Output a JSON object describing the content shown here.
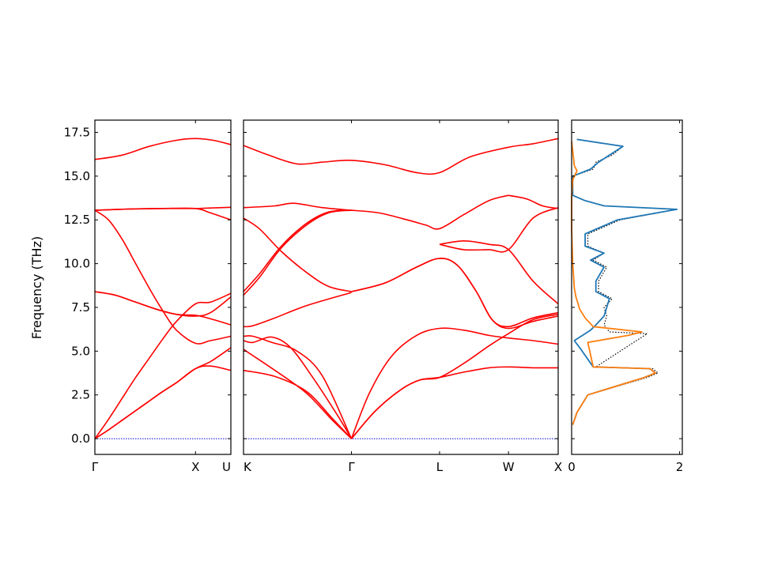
{
  "chart_data": {
    "type": "line",
    "ylabel": "Frequency (THz)",
    "ylim": [
      -0.9,
      18.2
    ],
    "yticks": [
      "0.0",
      "2.5",
      "5.0",
      "7.5",
      "10.0",
      "12.5",
      "15.0",
      "17.5"
    ],
    "ytick_values": [
      0,
      2.5,
      5,
      7.5,
      10,
      12.5,
      15,
      17.5
    ],
    "colors": {
      "bands": "#ff0000",
      "zero_line": "#0000cc",
      "dos_total": "#1f77b4",
      "dos_partial": "#ff7f0e",
      "dos_ref": "#000000"
    },
    "panels": [
      {
        "xticks": [
          "Γ",
          "X",
          "U"
        ],
        "xtick_positions": [
          0,
          0.74,
          1
        ],
        "branches": [
          {
            "x": [
              0,
              0.1,
              0.2,
              0.3,
              0.4,
              0.5,
              0.6,
              0.74,
              0.85,
              1
            ],
            "y": [
              0,
              0.5,
              1.05,
              1.6,
              2.15,
              2.7,
              3.2,
              4.0,
              4.15,
              3.9
            ]
          },
          {
            "x": [
              0,
              0.1,
              0.2,
              0.3,
              0.4,
              0.5,
              0.6,
              0.74,
              0.85,
              1
            ],
            "y": [
              0,
              0.5,
              1.05,
              1.6,
              2.15,
              2.7,
              3.2,
              4.0,
              4.4,
              5.2
            ]
          },
          {
            "x": [
              0,
              0.1,
              0.2,
              0.3,
              0.4,
              0.5,
              0.6,
              0.74,
              0.85,
              1
            ],
            "y": [
              0,
              1.1,
              2.3,
              3.5,
              4.6,
              5.7,
              6.7,
              7.7,
              7.8,
              8.3
            ]
          },
          {
            "x": [
              0,
              0.1,
              0.2,
              0.3,
              0.4,
              0.5,
              0.6,
              0.74,
              0.85,
              1
            ],
            "y": [
              13.05,
              12.5,
              11.4,
              10.0,
              8.6,
              7.3,
              6.2,
              5.45,
              5.6,
              5.85
            ]
          },
          {
            "x": [
              0,
              0.15,
              0.3,
              0.45,
              0.6,
              0.74,
              0.85,
              1
            ],
            "y": [
              8.4,
              8.2,
              7.8,
              7.4,
              7.1,
              7.0,
              7.2,
              8.1
            ]
          },
          {
            "x": [
              0,
              0.15,
              0.3,
              0.45,
              0.6,
              0.74,
              0.85,
              1
            ],
            "y": [
              8.4,
              8.2,
              7.8,
              7.4,
              7.1,
              7.05,
              6.85,
              6.5
            ]
          },
          {
            "x": [
              0,
              0.25,
              0.5,
              0.74,
              0.85,
              1
            ],
            "y": [
              13.05,
              13.12,
              13.15,
              13.15,
              13.18,
              13.22
            ]
          },
          {
            "x": [
              0,
              0.25,
              0.5,
              0.74,
              0.85,
              1
            ],
            "y": [
              13.05,
              13.12,
              13.15,
              13.15,
              12.9,
              12.5
            ]
          },
          {
            "x": [
              0,
              0.2,
              0.4,
              0.6,
              0.74,
              0.87,
              1
            ],
            "y": [
              15.95,
              16.2,
              16.7,
              17.05,
              17.15,
              17.05,
              16.8
            ]
          }
        ]
      },
      {
        "xticks": [
          "K",
          "Γ",
          "L",
          "W",
          "X"
        ],
        "xtick_positions": [
          0,
          0.343,
          0.623,
          0.842,
          1
        ],
        "branches": [
          {
            "x": [
              0,
              0.1,
              0.2,
              0.28,
              0.343
            ],
            "y": [
              3.9,
              3.55,
              2.7,
              1.2,
              0
            ]
          },
          {
            "x": [
              0,
              0.1,
              0.2,
              0.28,
              0.343
            ],
            "y": [
              5.1,
              3.9,
              2.6,
              1.1,
              0
            ]
          },
          {
            "x": [
              0,
              0.03,
              0.09,
              0.15,
              0.22,
              0.3,
              0.343
            ],
            "y": [
              5.6,
              5.5,
              5.8,
              5.2,
              3.5,
              1.3,
              0
            ]
          },
          {
            "x": [
              0,
              0.03,
              0.09,
              0.17,
              0.25,
              0.343
            ],
            "y": [
              5.85,
              5.85,
              5.5,
              5.0,
              3.6,
              0
            ]
          },
          {
            "x": [
              0.343,
              0.42,
              0.5,
              0.56,
              0.623,
              0.7,
              0.78,
              0.842,
              0.92,
              1
            ],
            "y": [
              0,
              1.6,
              2.8,
              3.35,
              3.5,
              3.8,
              4.05,
              4.1,
              4.05,
              4.05
            ]
          },
          {
            "x": [
              0.343,
              0.42,
              0.5,
              0.56,
              0.623,
              0.7,
              0.78,
              0.842,
              0.92,
              1
            ],
            "y": [
              0,
              1.6,
              2.8,
              3.35,
              3.5,
              4.3,
              5.3,
              6.0,
              6.8,
              7.1
            ]
          },
          {
            "x": [
              0.343,
              0.4,
              0.47,
              0.55,
              0.623,
              0.7,
              0.78,
              0.842,
              0.92,
              1
            ],
            "y": [
              0,
              2.6,
              4.7,
              5.9,
              6.3,
              6.2,
              5.9,
              5.75,
              5.6,
              5.4
            ]
          },
          {
            "x": [
              0,
              0.03,
              0.1,
              0.2,
              0.343
            ],
            "y": [
              6.4,
              6.45,
              6.9,
              7.6,
              8.35
            ]
          },
          {
            "x": [
              0.343,
              0.45,
              0.55,
              0.623,
              0.68,
              0.74,
              0.79,
              0.842,
              0.92,
              1
            ],
            "y": [
              8.4,
              8.9,
              9.8,
              10.3,
              9.9,
              8.4,
              6.8,
              6.3,
              6.7,
              7.0
            ]
          },
          {
            "x": [
              0.343,
              0.45,
              0.55,
              0.623,
              0.68,
              0.74,
              0.79,
              0.842,
              0.92,
              1
            ],
            "y": [
              8.4,
              8.9,
              9.8,
              10.3,
              9.9,
              8.4,
              6.8,
              6.4,
              6.9,
              7.2
            ]
          },
          {
            "x": [
              0,
              0.05,
              0.12,
              0.2,
              0.27,
              0.343
            ],
            "y": [
              12.6,
              12.0,
              10.7,
              9.5,
              8.7,
              8.4
            ]
          },
          {
            "x": [
              0,
              0.05,
              0.12,
              0.2,
              0.27,
              0.343
            ],
            "y": [
              8.2,
              9.2,
              10.9,
              12.2,
              12.9,
              13.05
            ]
          },
          {
            "x": [
              0,
              0.05,
              0.12,
              0.2,
              0.27,
              0.343
            ],
            "y": [
              8.4,
              9.4,
              11.0,
              12.3,
              12.95,
              13.05
            ]
          },
          {
            "x": [
              0,
              0.1,
              0.16,
              0.25,
              0.343
            ],
            "y": [
              13.2,
              13.3,
              13.45,
              13.2,
              13.05
            ]
          },
          {
            "x": [
              0.343,
              0.43,
              0.52,
              0.58,
              0.623,
              0.7,
              0.78,
              0.842
            ],
            "y": [
              13.05,
              12.9,
              12.5,
              12.2,
              12.0,
              12.8,
              13.6,
              13.9
            ]
          },
          {
            "x": [
              0.842,
              0.9,
              0.95,
              1
            ],
            "y": [
              13.9,
              13.7,
              13.3,
              13.15
            ]
          },
          {
            "x": [
              0.623,
              0.7,
              0.78,
              0.842,
              0.92,
              1
            ],
            "y": [
              11.1,
              11.3,
              11.1,
              10.8,
              9.0,
              7.7
            ]
          },
          {
            "x": [
              0.623,
              0.7,
              0.78,
              0.842,
              0.92,
              1
            ],
            "y": [
              11.1,
              10.8,
              10.8,
              10.8,
              12.6,
              13.2
            ]
          },
          {
            "x": [
              0,
              0.08,
              0.17,
              0.25,
              0.343,
              0.45,
              0.55,
              0.623,
              0.72,
              0.842,
              0.92,
              1
            ],
            "y": [
              16.75,
              16.2,
              15.7,
              15.8,
              15.9,
              15.65,
              15.2,
              15.2,
              16.1,
              16.65,
              16.85,
              17.15
            ]
          }
        ]
      }
    ],
    "dos": {
      "xticks": [
        "0",
        "2"
      ],
      "xtick_values": [
        0,
        2
      ],
      "xlim": [
        0,
        2.05
      ],
      "series": [
        {
          "style": "dotted",
          "freq": [
            0.8,
            1.5,
            2.5,
            3.5,
            3.75,
            4.0,
            4.1,
            6.0,
            6.1,
            6.5,
            7.0,
            7.5,
            8.0,
            8.4,
            9.0,
            9.8,
            10.2,
            10.6,
            11.0,
            11.7,
            12.5,
            13.1,
            13.3,
            13.6,
            13.9,
            15.0,
            15.4,
            15.8,
            16.2,
            16.7,
            17.1
          ],
          "dos": [
            0.02,
            0.1,
            0.3,
            1.4,
            1.6,
            1.5,
            0.45,
            1.4,
            0.7,
            0.6,
            0.65,
            0.6,
            0.75,
            0.5,
            0.5,
            0.65,
            0.4,
            0.6,
            0.3,
            0.3,
            0.9,
            1.95,
            0.6,
            0.25,
            0.02,
            0.02,
            0.4,
            0.45,
            0.75,
            0.95,
            0.1
          ]
        },
        {
          "style": "total",
          "freq": [
            0.8,
            1.5,
            2.5,
            3.5,
            3.75,
            4.0,
            4.1,
            5.2,
            5.6,
            6.0,
            6.2,
            6.5,
            7.0,
            7.5,
            8.0,
            8.4,
            9.0,
            9.8,
            10.2,
            10.6,
            11.0,
            11.7,
            12.5,
            13.1,
            13.3,
            13.6,
            13.9,
            15.0,
            15.4,
            15.8,
            16.2,
            16.7,
            17.1
          ],
          "dos": [
            0.02,
            0.1,
            0.3,
            1.35,
            1.55,
            1.45,
            0.4,
            0.15,
            0.05,
            0.25,
            0.35,
            0.45,
            0.6,
            0.65,
            0.7,
            0.45,
            0.45,
            0.6,
            0.35,
            0.6,
            0.25,
            0.25,
            0.85,
            1.95,
            0.6,
            0.25,
            0.02,
            0.02,
            0.35,
            0.5,
            0.7,
            0.95,
            0.1
          ]
        },
        {
          "style": "partial",
          "freq": [
            0.8,
            1.5,
            2.5,
            3.5,
            3.75,
            4.0,
            4.1,
            5.5,
            5.9,
            6.1,
            6.4,
            6.9,
            7.4,
            8.1,
            8.6,
            10.0,
            12.0,
            13.8,
            14.8,
            15.3,
            15.6,
            17.0
          ],
          "dos": [
            0.02,
            0.1,
            0.3,
            1.35,
            1.55,
            1.45,
            0.4,
            0.3,
            1.05,
            1.3,
            0.4,
            0.25,
            0.15,
            0.08,
            0.05,
            0.02,
            0.0,
            0.0,
            0.02,
            0.1,
            0.05,
            0.0
          ]
        }
      ]
    }
  }
}
